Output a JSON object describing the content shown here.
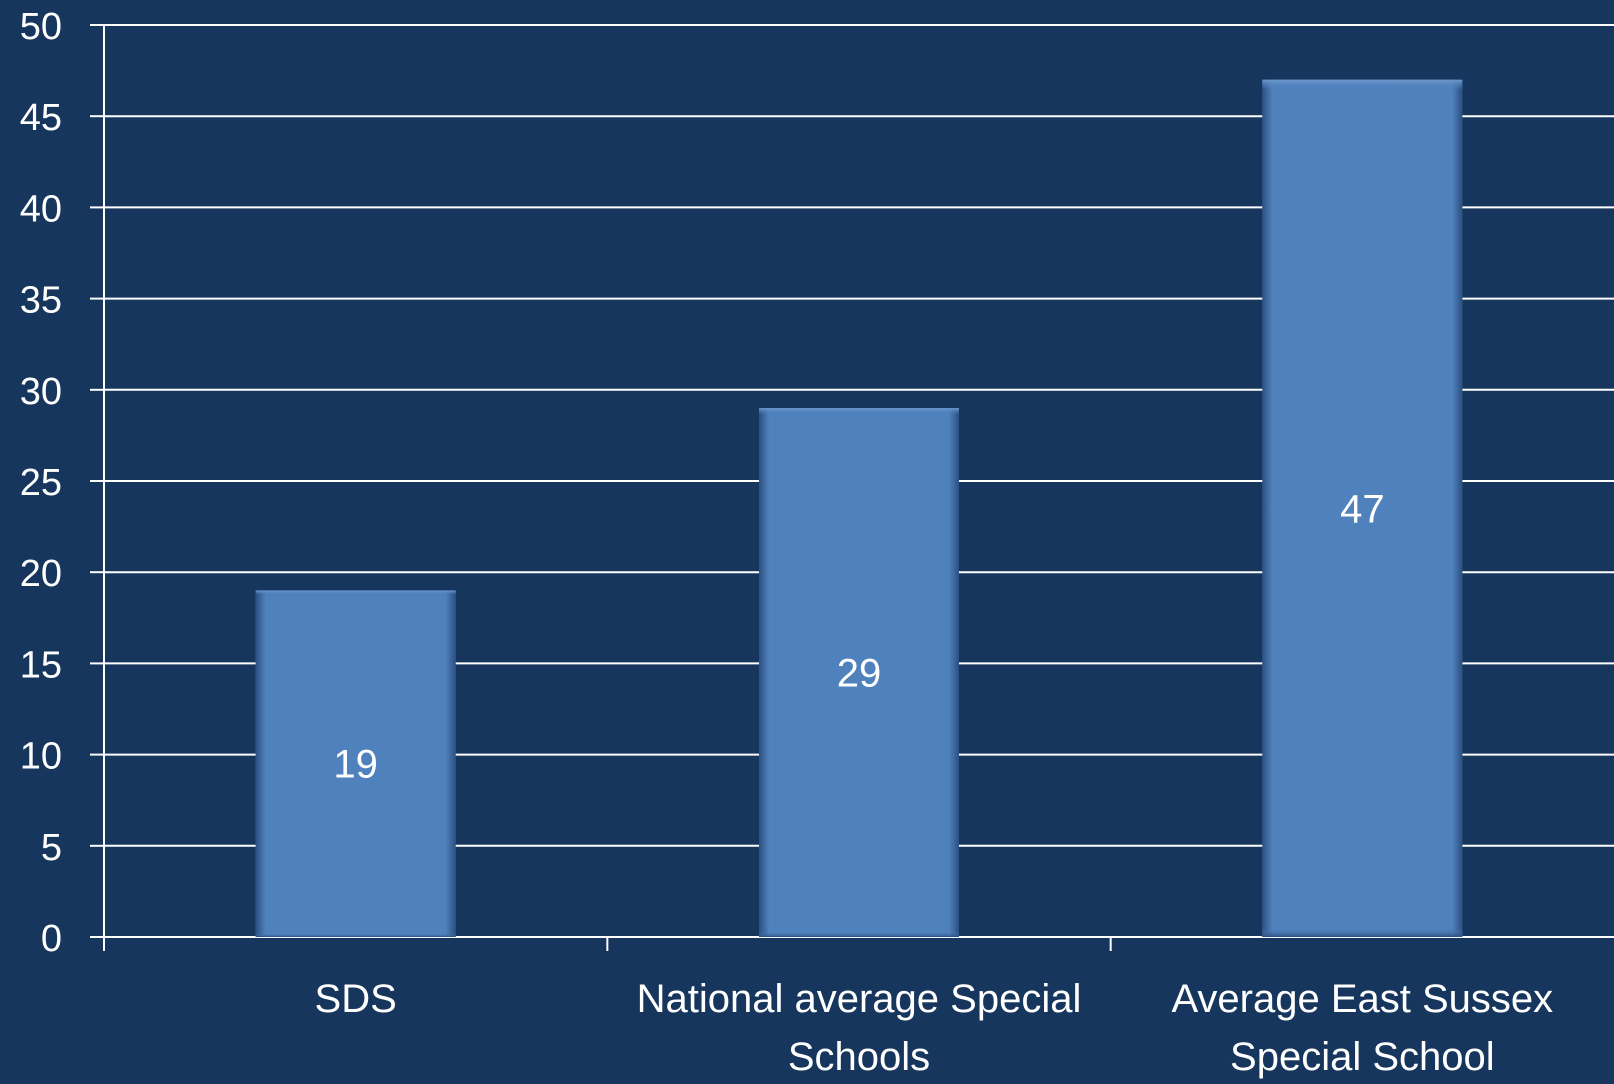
{
  "colors": {
    "background": "#17365d",
    "bar": "#4f81bd",
    "text": "#ffffff",
    "grid": "#ffffff"
  },
  "chart_data": {
    "type": "bar",
    "categories": [
      "SDS",
      "National average Special Schools",
      "Average East Sussex Special School"
    ],
    "category_label_lines": [
      [
        "SDS"
      ],
      [
        "National average Special",
        "Schools"
      ],
      [
        "Average East Sussex",
        "Special School"
      ]
    ],
    "values": [
      19,
      29,
      47
    ],
    "data_labels": [
      "19",
      "29",
      "47"
    ],
    "yticks": [
      0,
      5,
      10,
      15,
      20,
      25,
      30,
      35,
      40,
      45,
      50
    ],
    "ylim": [
      0,
      50
    ],
    "grid": true,
    "legend": "none"
  }
}
